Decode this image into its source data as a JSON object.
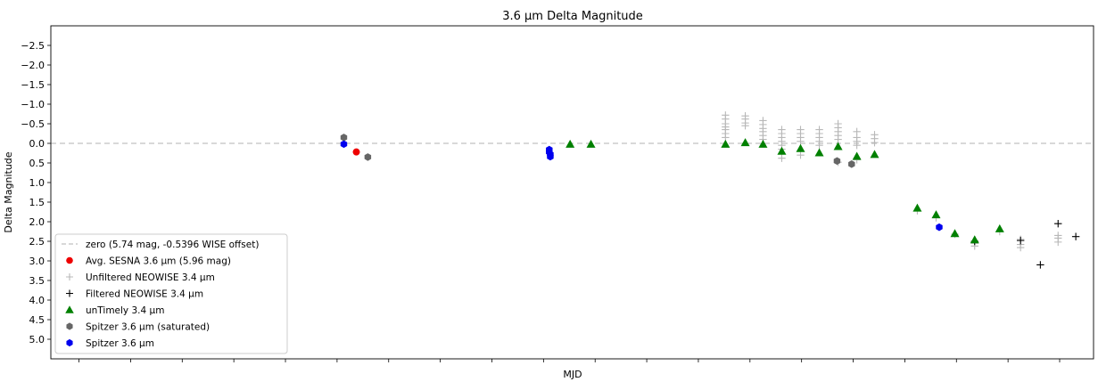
{
  "chart_data": {
    "type": "scatter",
    "title": "3.6 μm Delta Magnitude",
    "xlabel": "MJD",
    "ylabel": "Delta Magnitude",
    "ylim": [
      5.5,
      -3.0
    ],
    "y_inverted": true,
    "x_tick_labels_visible": false,
    "grid": false,
    "legend_position": "lower-left",
    "y_ticks": [
      "−2.5",
      "−2.0",
      "−1.5",
      "−1.0",
      "−0.5",
      "0.0",
      "0.5",
      "1.0",
      "1.5",
      "2.0",
      "2.5",
      "3.0",
      "3.5",
      "4.0",
      "4.5",
      "5.0"
    ],
    "y_tick_values": [
      -2.5,
      -2.0,
      -1.5,
      -1.0,
      -0.5,
      0.0,
      0.5,
      1.0,
      1.5,
      2.0,
      2.5,
      3.0,
      3.5,
      4.0,
      4.5,
      5.0
    ],
    "x_minor_tick_count": 20,
    "reference_line": {
      "label": "zero (5.74 mag, -0.5396 WISE offset)",
      "y": 0.0,
      "color": "#c0c0c0"
    },
    "series": [
      {
        "name": "Avg. SESNA 3.6 μm (5.96 mag)",
        "marker": "circle",
        "color": "#ee0000",
        "points": [
          [
            0.293,
            0.22
          ]
        ]
      },
      {
        "name": "Unfiltered NEOWISE 3.4 μm",
        "marker": "plus",
        "color": "#b8b8b8",
        "points": [
          [
            0.647,
            -0.72
          ],
          [
            0.647,
            -0.62
          ],
          [
            0.647,
            -0.5
          ],
          [
            0.647,
            -0.42
          ],
          [
            0.647,
            -0.35
          ],
          [
            0.647,
            -0.25
          ],
          [
            0.647,
            -0.15
          ],
          [
            0.666,
            -0.7
          ],
          [
            0.666,
            -0.62
          ],
          [
            0.666,
            -0.52
          ],
          [
            0.666,
            -0.45
          ],
          [
            0.683,
            -0.58
          ],
          [
            0.683,
            -0.48
          ],
          [
            0.683,
            -0.38
          ],
          [
            0.683,
            -0.3
          ],
          [
            0.683,
            -0.2
          ],
          [
            0.683,
            -0.1
          ],
          [
            0.701,
            -0.35
          ],
          [
            0.701,
            -0.25
          ],
          [
            0.701,
            -0.15
          ],
          [
            0.701,
            -0.05
          ],
          [
            0.701,
            0.05
          ],
          [
            0.701,
            0.15
          ],
          [
            0.701,
            0.38
          ],
          [
            0.719,
            -0.35
          ],
          [
            0.719,
            -0.25
          ],
          [
            0.719,
            -0.15
          ],
          [
            0.719,
            -0.05
          ],
          [
            0.719,
            0.3
          ],
          [
            0.737,
            -0.35
          ],
          [
            0.737,
            -0.25
          ],
          [
            0.737,
            -0.15
          ],
          [
            0.737,
            -0.05
          ],
          [
            0.737,
            0.05
          ],
          [
            0.755,
            -0.5
          ],
          [
            0.755,
            -0.4
          ],
          [
            0.755,
            -0.3
          ],
          [
            0.755,
            -0.2
          ],
          [
            0.755,
            -0.1
          ],
          [
            0.755,
            0.48
          ],
          [
            0.773,
            -0.3
          ],
          [
            0.773,
            -0.15
          ],
          [
            0.773,
            -0.05
          ],
          [
            0.773,
            0.05
          ],
          [
            0.773,
            0.42
          ],
          [
            0.79,
            -0.22
          ],
          [
            0.79,
            -0.12
          ],
          [
            0.79,
            -0.02
          ],
          [
            0.831,
            1.72
          ],
          [
            0.849,
            1.9
          ],
          [
            0.867,
            2.32
          ],
          [
            0.886,
            2.55
          ],
          [
            0.886,
            2.62
          ],
          [
            0.91,
            2.25
          ],
          [
            0.93,
            2.45
          ],
          [
            0.93,
            2.58
          ],
          [
            0.93,
            2.66
          ],
          [
            0.966,
            2.35
          ],
          [
            0.966,
            2.42
          ],
          [
            0.966,
            2.52
          ]
        ]
      },
      {
        "name": "Filtered NEOWISE 3.4 μm",
        "marker": "plus",
        "color": "#000000",
        "points": [
          [
            0.886,
            2.5
          ],
          [
            0.93,
            2.48
          ],
          [
            0.949,
            3.1
          ],
          [
            0.966,
            2.05
          ],
          [
            0.983,
            2.38
          ]
        ]
      },
      {
        "name": "unTimely 3.4 μm",
        "marker": "triangle",
        "color": "#008000",
        "points": [
          [
            0.498,
            0.02
          ],
          [
            0.518,
            0.02
          ],
          [
            0.647,
            0.02
          ],
          [
            0.666,
            -0.02
          ],
          [
            0.683,
            0.02
          ],
          [
            0.701,
            0.2
          ],
          [
            0.719,
            0.13
          ],
          [
            0.737,
            0.24
          ],
          [
            0.755,
            0.08
          ],
          [
            0.773,
            0.33
          ],
          [
            0.79,
            0.28
          ],
          [
            0.831,
            1.65
          ],
          [
            0.849,
            1.82
          ],
          [
            0.867,
            2.3
          ],
          [
            0.886,
            2.46
          ],
          [
            0.91,
            2.18
          ]
        ]
      },
      {
        "name": "Spitzer 3.6 μm (saturated)",
        "marker": "hexagon",
        "color": "#666666",
        "points": [
          [
            0.281,
            -0.15
          ],
          [
            0.304,
            0.35
          ],
          [
            0.754,
            0.45
          ],
          [
            0.768,
            0.53
          ]
        ]
      },
      {
        "name": "Spitzer 3.6 μm",
        "marker": "hexagon",
        "color": "#0000ee",
        "points": [
          [
            0.281,
            0.02
          ],
          [
            0.478,
            0.16
          ],
          [
            0.478,
            0.22
          ],
          [
            0.479,
            0.28
          ],
          [
            0.479,
            0.34
          ],
          [
            0.852,
            2.14
          ]
        ]
      }
    ]
  }
}
